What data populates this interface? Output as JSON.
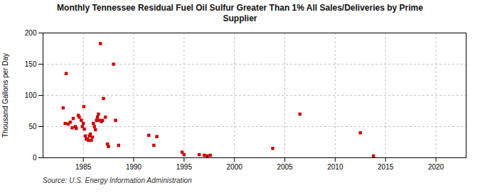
{
  "chart_data": {
    "type": "scatter",
    "title": "Monthly Tennessee Residual Fuel Oil Sulfur Greater Than 1% All Sales/Deliveries by Prime\nSupplier",
    "caption": "Source: U.S. Energy Information Administration",
    "ylabel": "Thousand Gallons per Day",
    "color": "#cc0000",
    "marker": "square",
    "grid": true,
    "xlim": [
      1981,
      2023
    ],
    "ylim": [
      0,
      200
    ],
    "xticks": [
      1985,
      1990,
      1995,
      2000,
      2005,
      2010,
      2015,
      2020
    ],
    "yticks": [
      0,
      50,
      100,
      150,
      200
    ],
    "x": [
      1983.0,
      1983.2,
      1983.5,
      1983.7,
      1983.9,
      1984.0,
      1984.2,
      1984.3,
      1984.5,
      1984.6,
      1984.8,
      1984.9,
      1985.0,
      1985.1,
      1985.2,
      1985.3,
      1985.4,
      1985.5,
      1985.6,
      1985.7,
      1985.8,
      1985.9,
      1986.0,
      1986.1,
      1986.2,
      1986.3,
      1986.4,
      1986.5,
      1986.6,
      1986.8,
      1986.9,
      1987.0,
      1987.2,
      1987.4,
      1987.5,
      1988.0,
      1988.2,
      1988.5,
      1983.3,
      1985.05,
      1986.7,
      1991.5,
      1992.0,
      1992.3,
      1994.8,
      1995.0,
      1996.5,
      1997.0,
      1997.3,
      1997.6,
      2003.8,
      2006.5,
      2012.5,
      2013.8
    ],
    "values": [
      80,
      55,
      54,
      57,
      48,
      63,
      50,
      47,
      68,
      65,
      60,
      50,
      55,
      46,
      35,
      30,
      30,
      28,
      35,
      38,
      28,
      33,
      55,
      50,
      45,
      60,
      65,
      70,
      60,
      58,
      60,
      95,
      65,
      22,
      18,
      150,
      60,
      20,
      135,
      82,
      183,
      36,
      20,
      34,
      9,
      5,
      5,
      4,
      3,
      4,
      15,
      70,
      40,
      3
    ]
  }
}
